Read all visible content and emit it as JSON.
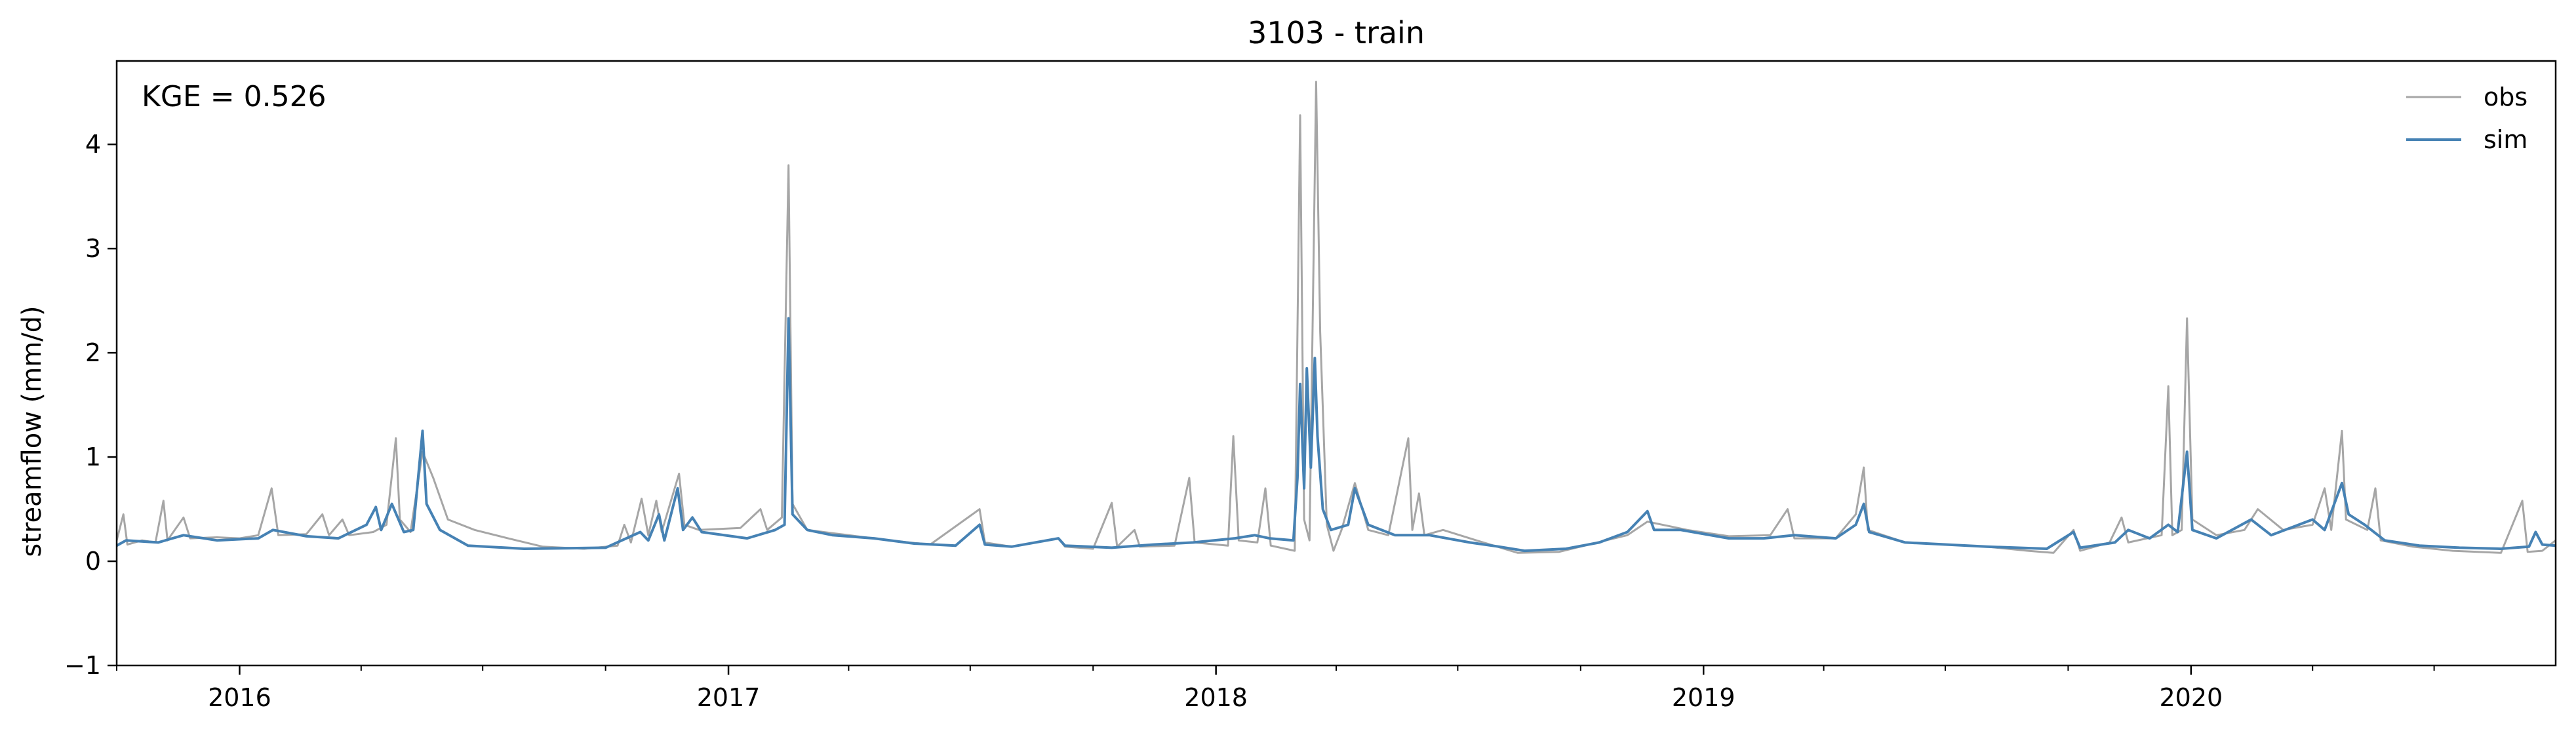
{
  "chart_data": {
    "type": "line",
    "title": "3103 - train",
    "xlabel": "",
    "ylabel": "streamflow (mm/d)",
    "annotation": "KGE = 0.526",
    "x_range": [
      "2015-10-01",
      "2020-09-30"
    ],
    "ylim": [
      -1,
      4.8
    ],
    "y_ticks": [
      -1,
      0,
      1,
      2,
      3,
      4
    ],
    "y_tick_labels": [
      "−1",
      "0",
      "1",
      "2",
      "3",
      "4"
    ],
    "x_ticks": [
      "2016-01-01",
      "2017-01-01",
      "2018-01-01",
      "2019-01-01",
      "2020-01-01"
    ],
    "x_tick_labels": [
      "2016",
      "2017",
      "2018",
      "2019",
      "2020"
    ],
    "grid": false,
    "legend": {
      "placement": "top-right"
    },
    "series": [
      {
        "name": "obs",
        "color": "#a6a6a6",
        "points": [
          [
            "2015-10-01",
            0.2
          ],
          [
            "2015-10-06",
            0.45
          ],
          [
            "2015-10-09",
            0.16
          ],
          [
            "2015-10-20",
            0.2
          ],
          [
            "2015-10-30",
            0.18
          ],
          [
            "2015-11-05",
            0.58
          ],
          [
            "2015-11-08",
            0.2
          ],
          [
            "2015-11-20",
            0.42
          ],
          [
            "2015-11-25",
            0.22
          ],
          [
            "2015-12-15",
            0.23
          ],
          [
            "2016-01-01",
            0.22
          ],
          [
            "2016-01-15",
            0.25
          ],
          [
            "2016-01-25",
            0.7
          ],
          [
            "2016-01-30",
            0.25
          ],
          [
            "2016-02-20",
            0.26
          ],
          [
            "2016-03-03",
            0.45
          ],
          [
            "2016-03-08",
            0.25
          ],
          [
            "2016-03-18",
            0.4
          ],
          [
            "2016-03-23",
            0.25
          ],
          [
            "2016-04-10",
            0.28
          ],
          [
            "2016-04-20",
            0.35
          ],
          [
            "2016-04-27",
            1.18
          ],
          [
            "2016-04-30",
            0.4
          ],
          [
            "2016-05-08",
            0.28
          ],
          [
            "2016-05-17",
            1.05
          ],
          [
            "2016-05-25",
            0.8
          ],
          [
            "2016-06-05",
            0.4
          ],
          [
            "2016-06-25",
            0.3
          ],
          [
            "2016-07-20",
            0.22
          ],
          [
            "2016-08-15",
            0.14
          ],
          [
            "2016-09-15",
            0.12
          ],
          [
            "2016-10-10",
            0.15
          ],
          [
            "2016-10-15",
            0.35
          ],
          [
            "2016-10-20",
            0.18
          ],
          [
            "2016-10-28",
            0.6
          ],
          [
            "2016-11-02",
            0.25
          ],
          [
            "2016-11-08",
            0.58
          ],
          [
            "2016-11-12",
            0.28
          ],
          [
            "2016-11-25",
            0.84
          ],
          [
            "2016-11-29",
            0.35
          ],
          [
            "2016-12-10",
            0.3
          ],
          [
            "2017-01-10",
            0.32
          ],
          [
            "2017-01-25",
            0.5
          ],
          [
            "2017-01-30",
            0.3
          ],
          [
            "2017-02-10",
            0.42
          ],
          [
            "2017-02-15",
            3.8
          ],
          [
            "2017-02-18",
            0.55
          ],
          [
            "2017-03-01",
            0.3
          ],
          [
            "2017-04-01",
            0.25
          ],
          [
            "2017-05-01",
            0.2
          ],
          [
            "2017-06-01",
            0.16
          ],
          [
            "2017-07-08",
            0.5
          ],
          [
            "2017-07-12",
            0.18
          ],
          [
            "2017-08-01",
            0.14
          ],
          [
            "2017-09-05",
            0.22
          ],
          [
            "2017-09-10",
            0.14
          ],
          [
            "2017-10-01",
            0.12
          ],
          [
            "2017-10-15",
            0.56
          ],
          [
            "2017-10-19",
            0.14
          ],
          [
            "2017-11-01",
            0.3
          ],
          [
            "2017-11-05",
            0.14
          ],
          [
            "2017-12-01",
            0.15
          ],
          [
            "2017-12-12",
            0.8
          ],
          [
            "2017-12-16",
            0.18
          ],
          [
            "2018-01-10",
            0.15
          ],
          [
            "2018-01-14",
            1.2
          ],
          [
            "2018-01-18",
            0.2
          ],
          [
            "2018-02-01",
            0.18
          ],
          [
            "2018-02-07",
            0.7
          ],
          [
            "2018-02-11",
            0.15
          ],
          [
            "2018-03-01",
            0.1
          ],
          [
            "2018-03-05",
            4.28
          ],
          [
            "2018-03-08",
            0.4
          ],
          [
            "2018-03-12",
            0.2
          ],
          [
            "2018-03-17",
            4.6
          ],
          [
            "2018-03-20",
            2.2
          ],
          [
            "2018-03-25",
            0.35
          ],
          [
            "2018-03-30",
            0.1
          ],
          [
            "2018-04-05",
            0.3
          ],
          [
            "2018-04-15",
            0.75
          ],
          [
            "2018-04-25",
            0.3
          ],
          [
            "2018-05-10",
            0.25
          ],
          [
            "2018-05-25",
            1.18
          ],
          [
            "2018-05-28",
            0.3
          ],
          [
            "2018-06-02",
            0.65
          ],
          [
            "2018-06-06",
            0.25
          ],
          [
            "2018-06-20",
            0.3
          ],
          [
            "2018-07-15",
            0.2
          ],
          [
            "2018-08-15",
            0.08
          ],
          [
            "2018-09-15",
            0.09
          ],
          [
            "2018-10-20",
            0.2
          ],
          [
            "2018-11-05",
            0.25
          ],
          [
            "2018-11-20",
            0.38
          ],
          [
            "2018-12-20",
            0.3
          ],
          [
            "2019-01-20",
            0.24
          ],
          [
            "2019-02-20",
            0.25
          ],
          [
            "2019-03-05",
            0.5
          ],
          [
            "2019-03-10",
            0.22
          ],
          [
            "2019-04-10",
            0.22
          ],
          [
            "2019-04-25",
            0.45
          ],
          [
            "2019-05-01",
            0.9
          ],
          [
            "2019-05-04",
            0.3
          ],
          [
            "2019-06-01",
            0.18
          ],
          [
            "2019-08-01",
            0.14
          ],
          [
            "2019-09-01",
            0.1
          ],
          [
            "2019-09-20",
            0.08
          ],
          [
            "2019-10-05",
            0.3
          ],
          [
            "2019-10-10",
            0.1
          ],
          [
            "2019-11-01",
            0.18
          ],
          [
            "2019-11-10",
            0.42
          ],
          [
            "2019-11-15",
            0.18
          ],
          [
            "2019-12-10",
            0.25
          ],
          [
            "2019-12-15",
            1.68
          ],
          [
            "2019-12-18",
            0.25
          ],
          [
            "2019-12-25",
            0.3
          ],
          [
            "2019-12-29",
            2.33
          ],
          [
            "2020-01-02",
            0.4
          ],
          [
            "2020-01-20",
            0.25
          ],
          [
            "2020-02-10",
            0.3
          ],
          [
            "2020-02-20",
            0.5
          ],
          [
            "2020-03-10",
            0.3
          ],
          [
            "2020-04-01",
            0.35
          ],
          [
            "2020-04-10",
            0.7
          ],
          [
            "2020-04-15",
            0.3
          ],
          [
            "2020-04-23",
            1.25
          ],
          [
            "2020-04-26",
            0.4
          ],
          [
            "2020-05-12",
            0.3
          ],
          [
            "2020-05-18",
            0.7
          ],
          [
            "2020-05-22",
            0.2
          ],
          [
            "2020-06-15",
            0.14
          ],
          [
            "2020-07-15",
            0.1
          ],
          [
            "2020-08-20",
            0.08
          ],
          [
            "2020-09-05",
            0.58
          ],
          [
            "2020-09-09",
            0.09
          ],
          [
            "2020-09-20",
            0.1
          ],
          [
            "2020-09-30",
            0.2
          ]
        ]
      },
      {
        "name": "sim",
        "color": "#4682b4",
        "points": [
          [
            "2015-10-01",
            0.15
          ],
          [
            "2015-10-08",
            0.2
          ],
          [
            "2015-11-01",
            0.18
          ],
          [
            "2015-11-20",
            0.25
          ],
          [
            "2015-12-15",
            0.2
          ],
          [
            "2016-01-15",
            0.22
          ],
          [
            "2016-01-26",
            0.3
          ],
          [
            "2016-02-20",
            0.24
          ],
          [
            "2016-03-15",
            0.22
          ],
          [
            "2016-04-05",
            0.35
          ],
          [
            "2016-04-12",
            0.52
          ],
          [
            "2016-04-16",
            0.3
          ],
          [
            "2016-04-24",
            0.55
          ],
          [
            "2016-05-03",
            0.28
          ],
          [
            "2016-05-10",
            0.3
          ],
          [
            "2016-05-17",
            1.25
          ],
          [
            "2016-05-20",
            0.55
          ],
          [
            "2016-05-30",
            0.3
          ],
          [
            "2016-06-20",
            0.15
          ],
          [
            "2016-08-01",
            0.12
          ],
          [
            "2016-10-01",
            0.13
          ],
          [
            "2016-10-27",
            0.28
          ],
          [
            "2016-11-02",
            0.2
          ],
          [
            "2016-11-10",
            0.45
          ],
          [
            "2016-11-14",
            0.2
          ],
          [
            "2016-11-24",
            0.7
          ],
          [
            "2016-11-28",
            0.3
          ],
          [
            "2016-12-05",
            0.42
          ],
          [
            "2016-12-12",
            0.28
          ],
          [
            "2017-01-15",
            0.22
          ],
          [
            "2017-02-05",
            0.3
          ],
          [
            "2017-02-12",
            0.35
          ],
          [
            "2017-02-15",
            2.33
          ],
          [
            "2017-02-18",
            0.45
          ],
          [
            "2017-03-01",
            0.3
          ],
          [
            "2017-03-20",
            0.25
          ],
          [
            "2017-04-20",
            0.22
          ],
          [
            "2017-05-20",
            0.17
          ],
          [
            "2017-06-20",
            0.15
          ],
          [
            "2017-07-08",
            0.35
          ],
          [
            "2017-07-12",
            0.16
          ],
          [
            "2017-08-01",
            0.14
          ],
          [
            "2017-09-05",
            0.22
          ],
          [
            "2017-09-10",
            0.15
          ],
          [
            "2017-10-15",
            0.13
          ],
          [
            "2017-11-15",
            0.16
          ],
          [
            "2017-12-15",
            0.18
          ],
          [
            "2018-01-15",
            0.22
          ],
          [
            "2018-01-30",
            0.25
          ],
          [
            "2018-02-10",
            0.22
          ],
          [
            "2018-02-28",
            0.2
          ],
          [
            "2018-03-03",
            0.8
          ],
          [
            "2018-03-05",
            1.7
          ],
          [
            "2018-03-08",
            0.7
          ],
          [
            "2018-03-10",
            1.85
          ],
          [
            "2018-03-13",
            0.9
          ],
          [
            "2018-03-16",
            1.95
          ],
          [
            "2018-03-18",
            1.2
          ],
          [
            "2018-03-22",
            0.5
          ],
          [
            "2018-03-28",
            0.3
          ],
          [
            "2018-04-10",
            0.35
          ],
          [
            "2018-04-15",
            0.7
          ],
          [
            "2018-04-25",
            0.35
          ],
          [
            "2018-05-15",
            0.25
          ],
          [
            "2018-06-10",
            0.25
          ],
          [
            "2018-07-10",
            0.18
          ],
          [
            "2018-08-01",
            0.14
          ],
          [
            "2018-08-20",
            0.1
          ],
          [
            "2018-09-20",
            0.12
          ],
          [
            "2018-10-15",
            0.18
          ],
          [
            "2018-11-05",
            0.28
          ],
          [
            "2018-11-20",
            0.48
          ],
          [
            "2018-11-25",
            0.3
          ],
          [
            "2018-12-15",
            0.3
          ],
          [
            "2019-01-20",
            0.22
          ],
          [
            "2019-02-15",
            0.22
          ],
          [
            "2019-03-10",
            0.25
          ],
          [
            "2019-04-10",
            0.22
          ],
          [
            "2019-04-25",
            0.35
          ],
          [
            "2019-05-01",
            0.55
          ],
          [
            "2019-05-05",
            0.28
          ],
          [
            "2019-06-01",
            0.18
          ],
          [
            "2019-08-01",
            0.14
          ],
          [
            "2019-09-15",
            0.12
          ],
          [
            "2019-10-05",
            0.28
          ],
          [
            "2019-10-10",
            0.13
          ],
          [
            "2019-11-05",
            0.18
          ],
          [
            "2019-11-15",
            0.3
          ],
          [
            "2019-12-01",
            0.22
          ],
          [
            "2019-12-15",
            0.35
          ],
          [
            "2019-12-22",
            0.28
          ],
          [
            "2019-12-29",
            1.05
          ],
          [
            "2020-01-02",
            0.3
          ],
          [
            "2020-01-20",
            0.22
          ],
          [
            "2020-02-15",
            0.4
          ],
          [
            "2020-03-01",
            0.25
          ],
          [
            "2020-04-01",
            0.4
          ],
          [
            "2020-04-10",
            0.3
          ],
          [
            "2020-04-23",
            0.75
          ],
          [
            "2020-04-28",
            0.45
          ],
          [
            "2020-05-10",
            0.35
          ],
          [
            "2020-05-25",
            0.2
          ],
          [
            "2020-06-20",
            0.15
          ],
          [
            "2020-07-20",
            0.13
          ],
          [
            "2020-08-20",
            0.12
          ],
          [
            "2020-09-10",
            0.14
          ],
          [
            "2020-09-15",
            0.28
          ],
          [
            "2020-09-20",
            0.16
          ],
          [
            "2020-09-30",
            0.15
          ]
        ]
      }
    ]
  }
}
